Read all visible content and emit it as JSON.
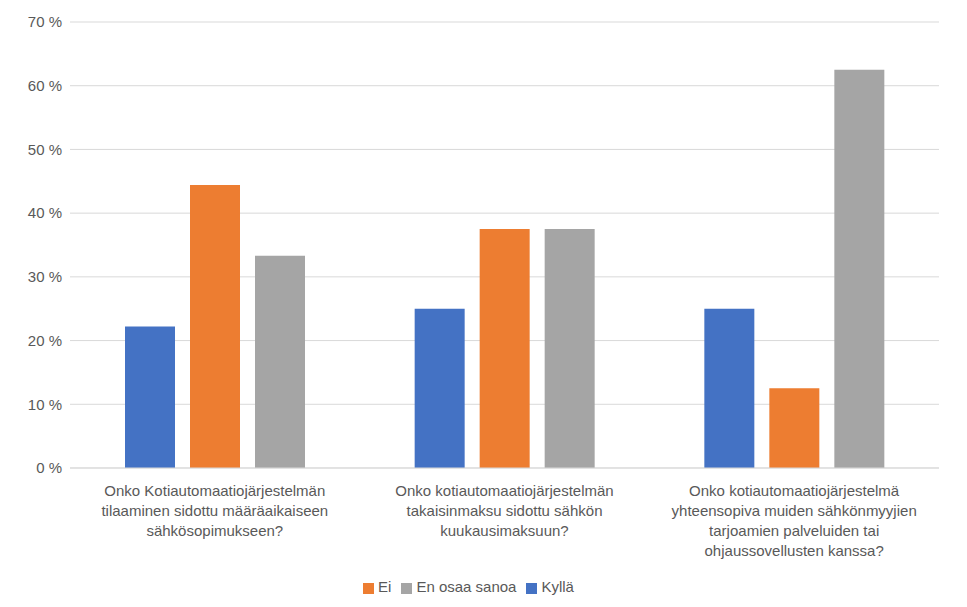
{
  "chart_data": {
    "type": "bar",
    "categories": [
      "Onko Kotiautomaatiojärjestelmän tilaaminen sidottu määräaikaiseen sähkösopimukseen?",
      "Onko kotiautomaatiojärjestelmän takaisinmaksu sidottu sähkön kuukausimaksuun?",
      "Onko kotiautomaatiojärjestelmä yhteensopiva muiden sähkönmyyjien tarjoamien palveluiden tai ohjaussovellusten kanssa?"
    ],
    "series": [
      {
        "name": "Kyllä",
        "color": "#4472c4",
        "values": [
          22.2,
          25,
          25
        ]
      },
      {
        "name": "Ei",
        "color": "#ed7d31",
        "values": [
          44.4,
          37.5,
          12.5
        ]
      },
      {
        "name": "En osaa sanoa",
        "color": "#a5a5a5",
        "values": [
          33.3,
          37.5,
          62.5
        ]
      }
    ],
    "ylim": [
      0,
      70
    ],
    "yticks": [
      {
        "value": 0,
        "label": "0 %"
      },
      {
        "value": 10,
        "label": "10 %"
      },
      {
        "value": 20,
        "label": "20 %"
      },
      {
        "value": 30,
        "label": "30 %"
      },
      {
        "value": 40,
        "label": "40 %"
      },
      {
        "value": 50,
        "label": "50 %"
      },
      {
        "value": 60,
        "label": "60 %"
      },
      {
        "value": 70,
        "label": "70 %"
      }
    ],
    "grid": true,
    "legend": "bottom"
  }
}
